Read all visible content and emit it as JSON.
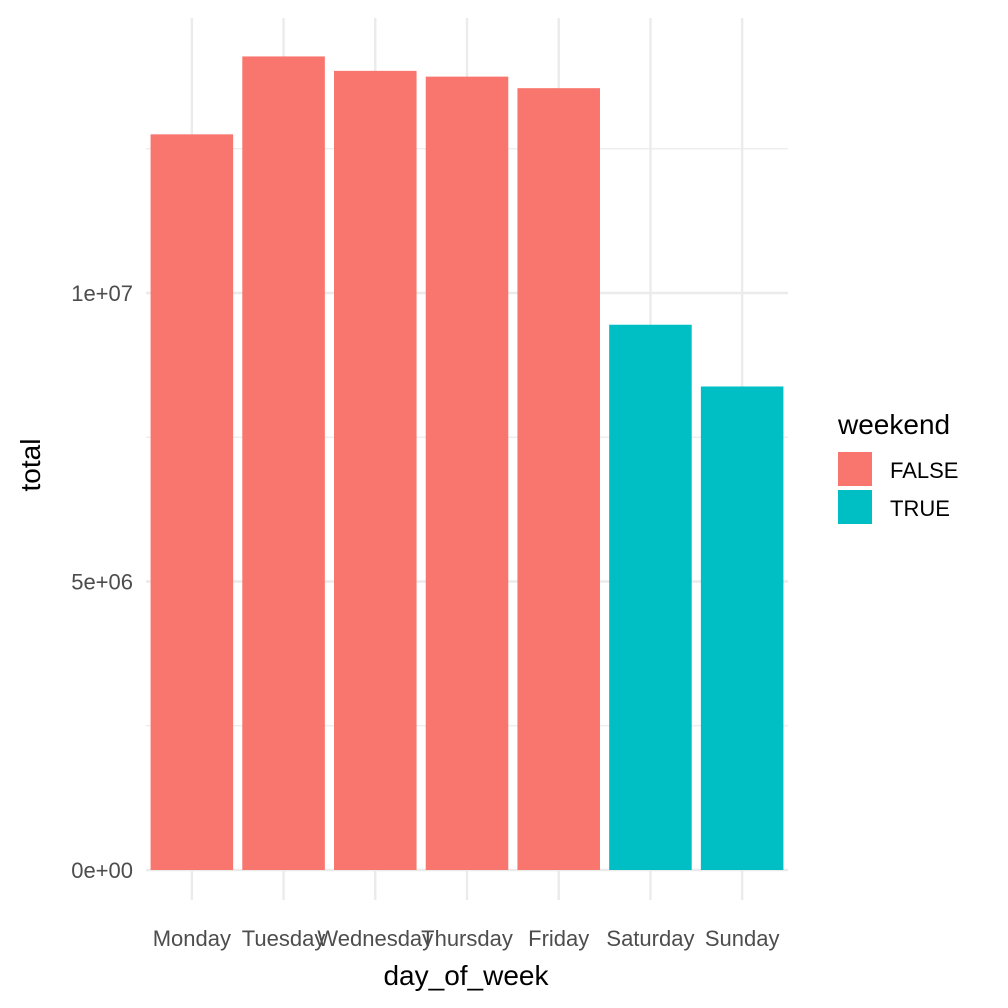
{
  "chart_data": {
    "type": "bar",
    "categories": [
      "Monday",
      "Tuesday",
      "Wednesday",
      "Thursday",
      "Friday",
      "Saturday",
      "Sunday"
    ],
    "values": [
      12750000,
      14100000,
      13850000,
      13750000,
      13550000,
      9450000,
      8380000
    ],
    "fill_group": [
      false,
      false,
      false,
      false,
      false,
      true,
      true
    ],
    "xlabel": "day_of_week",
    "ylabel": "total",
    "ylim": [
      0,
      14800000
    ],
    "y_ticks": [
      {
        "value": 0,
        "label": "0e+00"
      },
      {
        "value": 5000000,
        "label": "5e+06"
      },
      {
        "value": 10000000,
        "label": "1e+07"
      }
    ],
    "legend": {
      "title": "weekend",
      "placement": "right",
      "entries": [
        {
          "label": "FALSE",
          "color": "#F8766D"
        },
        {
          "label": "TRUE",
          "color": "#00BFC4"
        }
      ]
    },
    "grid": true
  }
}
